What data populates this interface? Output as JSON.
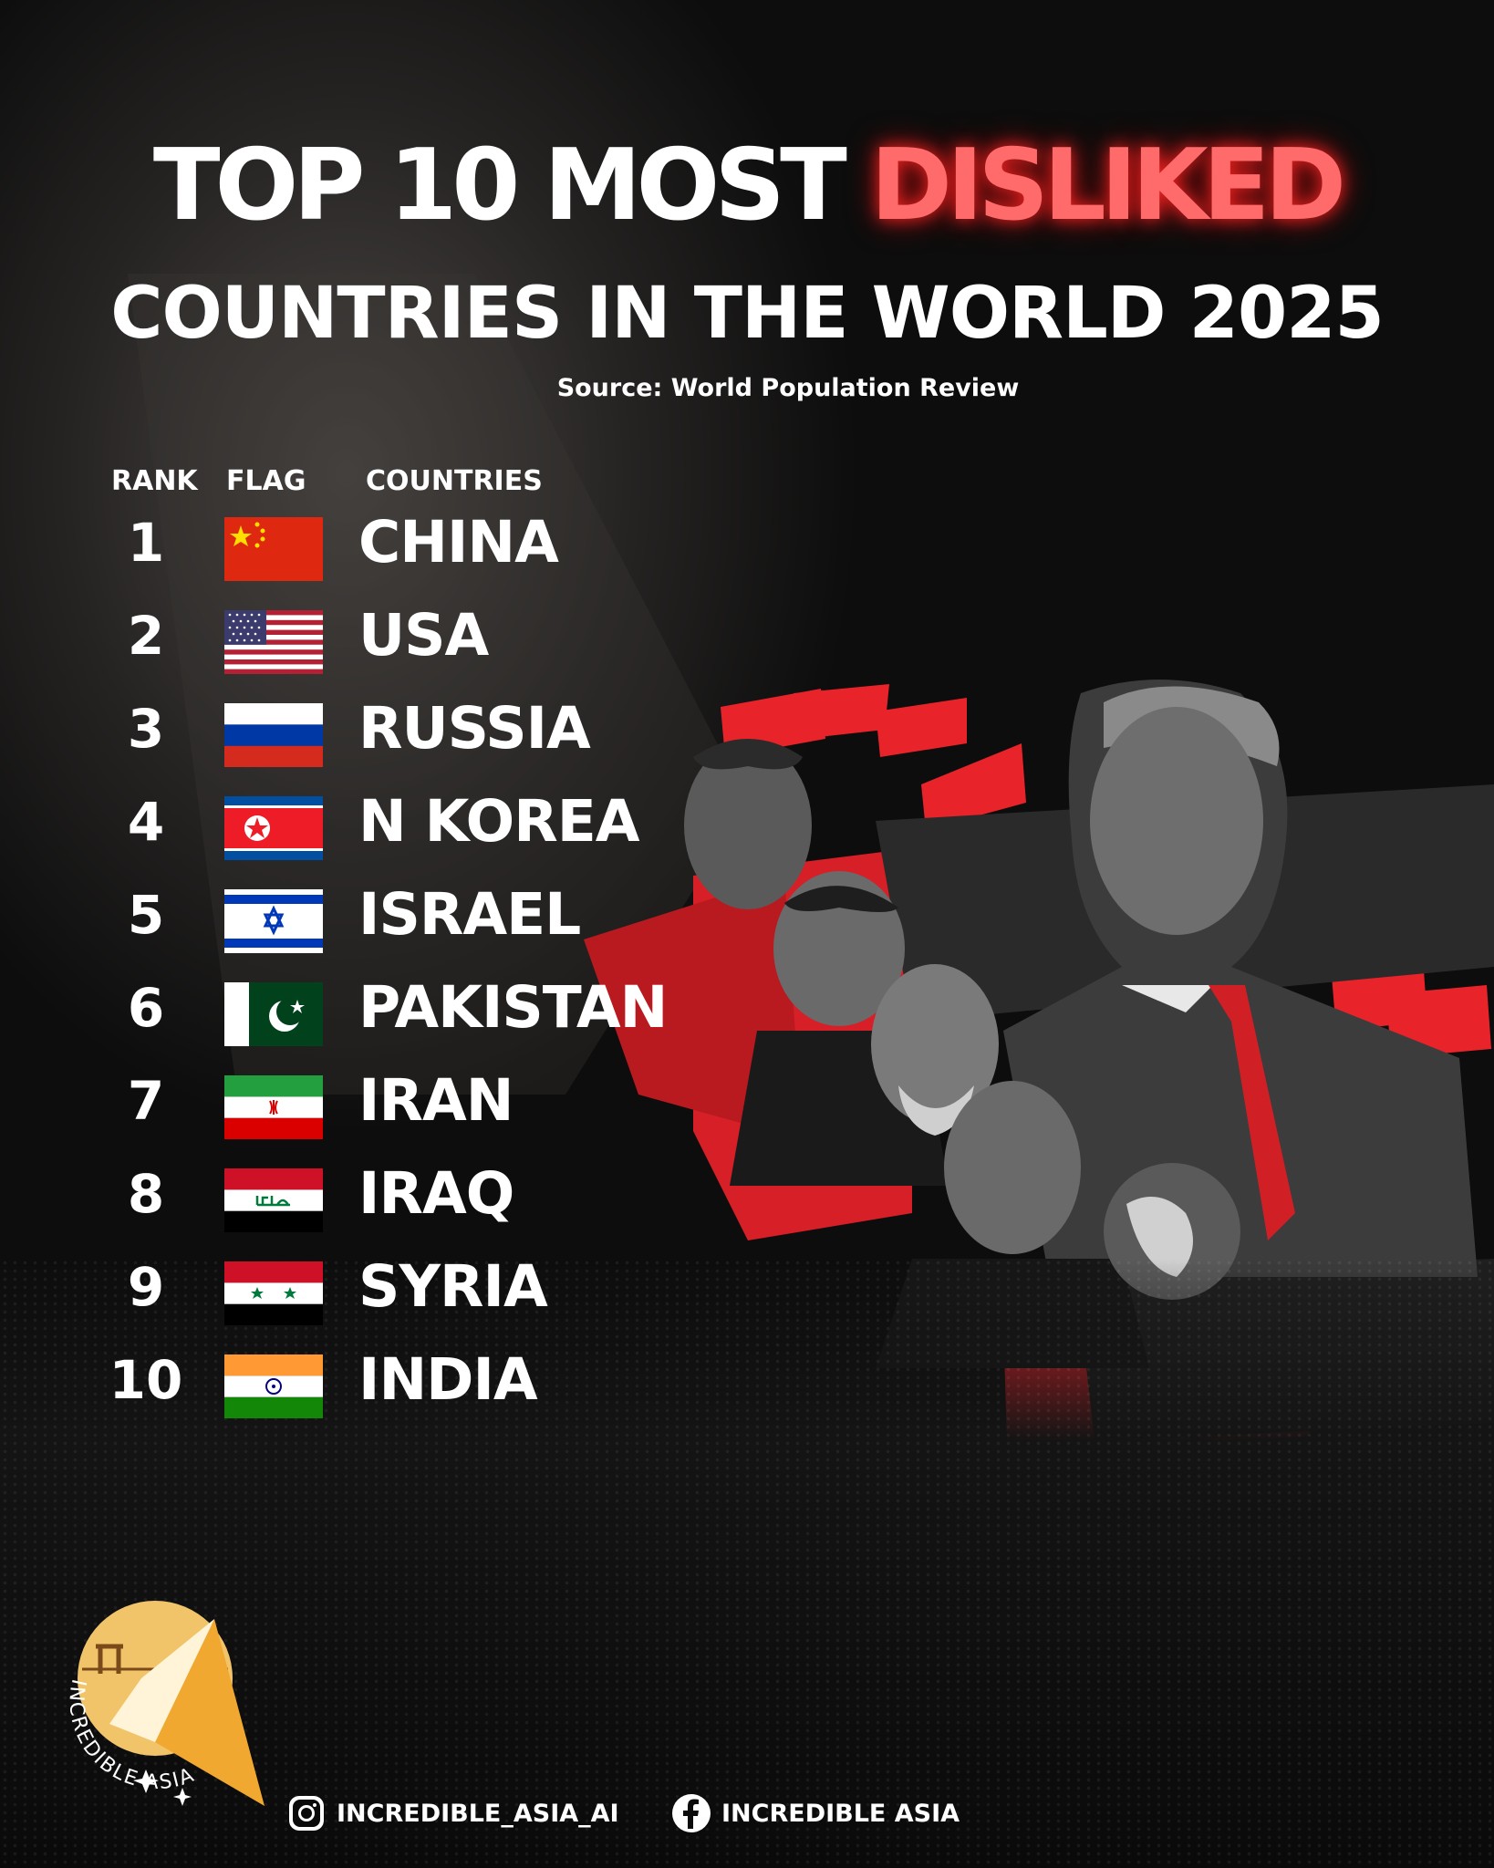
{
  "title": {
    "part1": "TOP 10 MOST ",
    "part2": "DISLIKED",
    "line2": "COUNTRIES IN THE WORLD 2025"
  },
  "source": "Source: World Population Review",
  "headers": {
    "rank": "RANK",
    "flag": "FLAG",
    "countries": "COUNTRIES"
  },
  "rows": [
    {
      "rank": "1",
      "country": "CHINA",
      "flag": "china-flag-icon"
    },
    {
      "rank": "2",
      "country": "USA",
      "flag": "usa-flag-icon"
    },
    {
      "rank": "3",
      "country": "RUSSIA",
      "flag": "russia-flag-icon"
    },
    {
      "rank": "4",
      "country": "N KOREA",
      "flag": "north-korea-flag-icon"
    },
    {
      "rank": "5",
      "country": "ISRAEL",
      "flag": "israel-flag-icon"
    },
    {
      "rank": "6",
      "country": "PAKISTAN",
      "flag": "pakistan-flag-icon"
    },
    {
      "rank": "7",
      "country": "IRAN",
      "flag": "iran-flag-icon"
    },
    {
      "rank": "8",
      "country": "IRAQ",
      "flag": "iraq-flag-icon"
    },
    {
      "rank": "9",
      "country": "SYRIA",
      "flag": "syria-flag-icon"
    },
    {
      "rank": "10",
      "country": "INDIA",
      "flag": "india-flag-icon"
    }
  ],
  "logo_text": "INCREDIBLE ASIA",
  "social": {
    "instagram": "INCREDIBLE_ASIA_AI",
    "facebook": "INCREDIBLE ASIA"
  },
  "colors": {
    "accent": "#ff6a6a",
    "flag_red": "#e8232a",
    "background": "#0b0b0b"
  }
}
